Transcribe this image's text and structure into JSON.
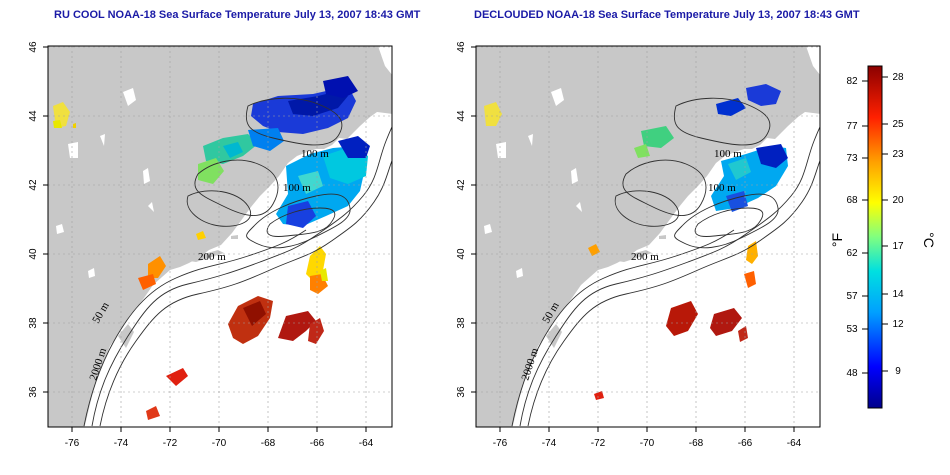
{
  "titles": {
    "left": "RU COOL NOAA-18 Sea Surface Temperature July 13, 2007 18:43 GMT",
    "right": "DECLOUDED NOAA-18 Sea Surface Temperature July 13, 2007 18:43 GMT"
  },
  "axes": {
    "lon_ticks": [
      "-76",
      "-74",
      "-72",
      "-70",
      "-68",
      "-66",
      "-64"
    ],
    "lat_ticks": [
      "46",
      "44",
      "42",
      "40",
      "38",
      "36"
    ]
  },
  "contour_labels": {
    "c100": "100 m",
    "c200": "200 m",
    "c50": "50 m",
    "c2000": "2000 m"
  },
  "colorbar": {
    "fahrenheit_ticks": [
      "82",
      "77",
      "73",
      "68",
      "62",
      "57",
      "53",
      "48"
    ],
    "celsius_ticks": [
      "28",
      "25",
      "23",
      "20",
      "17",
      "14",
      "12",
      "9"
    ],
    "unit_f": "°F",
    "unit_c": "°C"
  },
  "colors": {
    "land": "#c8c8c8",
    "ocean": "#ffffff",
    "title": "#1a1aa6"
  }
}
